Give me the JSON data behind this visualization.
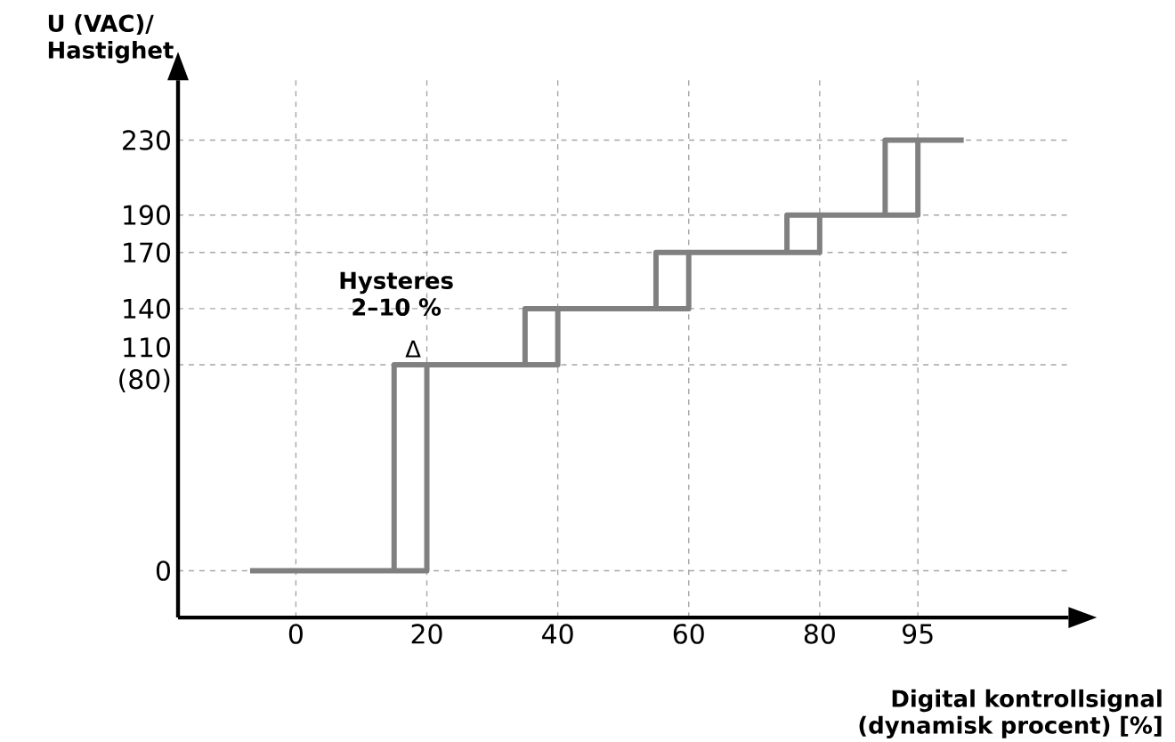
{
  "chart_data": {
    "type": "line",
    "xlabel": "Digital kontrollsignal (dynamisk procent) [%]",
    "ylabel": "U (VAC)/ Hastighet",
    "xlim": [
      -18,
      118
    ],
    "ylim": [
      -25,
      262
    ],
    "xticks": [
      0,
      20,
      40,
      60,
      80,
      95
    ],
    "yticks": [
      0,
      {
        "value": 110,
        "label": "110 (80)"
      },
      140,
      170,
      190,
      230
    ],
    "grid": true,
    "marker": "none",
    "line_style": "solid",
    "series": [
      {
        "color": "#808080",
        "x": [
          -7,
          20,
          20,
          40,
          40,
          60,
          60,
          80,
          80,
          95,
          95,
          102
        ],
        "values": [
          0,
          0,
          110,
          110,
          140,
          140,
          170,
          170,
          190,
          190,
          230,
          230
        ]
      },
      {
        "color": "#808080",
        "x": [
          20,
          15,
          15,
          null,
          40,
          35,
          35,
          null,
          60,
          55,
          55,
          null,
          80,
          75,
          75,
          null,
          95,
          90,
          90
        ],
        "values": [
          110,
          110,
          0,
          null,
          140,
          140,
          110,
          null,
          170,
          170,
          140,
          null,
          190,
          190,
          170,
          null,
          230,
          230,
          190
        ]
      }
    ],
    "annotations": [
      "**Hysteres 2–10 %**",
      "Δ"
    ]
  }
}
